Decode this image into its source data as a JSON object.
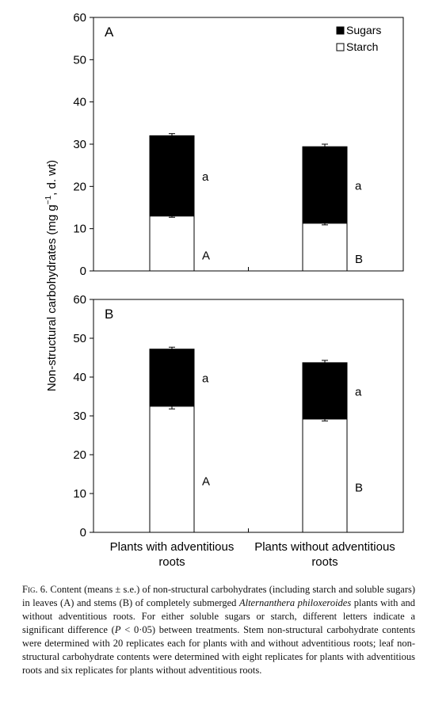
{
  "chart_data": [
    {
      "type": "bar",
      "stacked": true,
      "panel_label": "A",
      "categories": [
        "Plants with adventitious roots",
        "Plants without adventitious roots"
      ],
      "series": [
        {
          "name": "Starch",
          "values": [
            13.0,
            11.3
          ],
          "errors": [
            0.3,
            0.4
          ],
          "color": "#ffffff",
          "letters": [
            "A",
            "B"
          ]
        },
        {
          "name": "Sugars",
          "values": [
            19.0,
            18.1
          ],
          "errors": [
            0.5,
            0.6
          ],
          "color": "#000000",
          "letters": [
            "a",
            "a"
          ]
        }
      ],
      "ylim": [
        0,
        60
      ],
      "yticks": [
        0,
        10,
        20,
        30,
        40,
        50,
        60
      ],
      "legend_position": "top-right"
    },
    {
      "type": "bar",
      "stacked": true,
      "panel_label": "B",
      "categories": [
        "Plants with adventitious roots",
        "Plants without adventitious roots"
      ],
      "series": [
        {
          "name": "Starch",
          "values": [
            32.5,
            29.2
          ],
          "errors": [
            0.7,
            0.5
          ],
          "color": "#ffffff",
          "letters": [
            "A",
            "B"
          ]
        },
        {
          "name": "Sugars",
          "values": [
            14.7,
            14.5
          ],
          "errors": [
            0.5,
            0.6
          ],
          "color": "#000000",
          "letters": [
            "a",
            "a"
          ]
        }
      ],
      "ylim": [
        0,
        60
      ],
      "yticks": [
        0,
        10,
        20,
        30,
        40,
        50,
        60
      ]
    }
  ],
  "axis": {
    "ylabel_prefix": "Non-structural carbohydrates  (mg g",
    "ylabel_sup": "−1",
    "ylabel_suffix": ", d. wt)"
  },
  "xlabels": [
    [
      "Plants with adventitious",
      "roots"
    ],
    [
      "Plants without adventitious",
      "roots"
    ]
  ],
  "caption": {
    "label": "Fig. 6.",
    "text1": "Content (means ± s.e.) of non-structural carbohydrates (including starch and soluble sugars) in leaves (A) and stems (B) of completely submerged ",
    "species": "Alternanthera philoxeroides",
    "text2": " plants with and without adventitious roots. For either soluble sugars or starch, different letters indicate a significant difference (",
    "p_symbol": "P",
    "text3": " < 0·05) between treatments. Stem non-structural carbohydrate contents were determined with 20 replicates each for plants with and without adventitious roots; leaf non-structural carbohydrate contents were determined with eight replicates for plants with adventitious roots and six replicates for plants without adventitious roots."
  }
}
